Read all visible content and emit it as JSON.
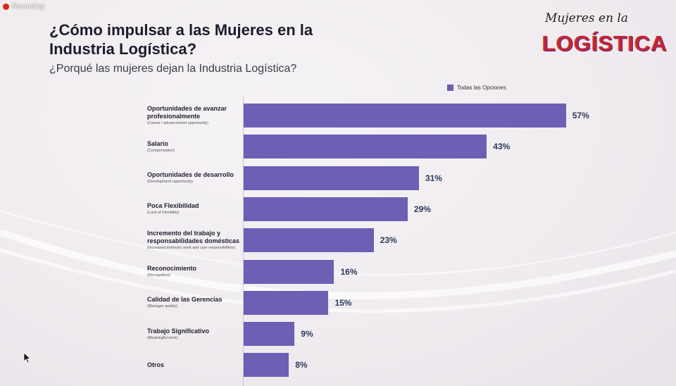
{
  "recording": {
    "label": "Recording"
  },
  "header": {
    "title": "¿Cómo impulsar a las Mujeres en la Industria Logística?",
    "subtitle": "¿Porqué las mujeres dejan la Industria Logística?"
  },
  "logo": {
    "top": "Mujeres en la",
    "main": "LOGÍSTICA"
  },
  "colors": {
    "bar": "#6c5fb4",
    "value_text": "#2e3a5c",
    "background": "#efebef"
  },
  "chart_data": {
    "type": "bar",
    "orientation": "horizontal",
    "title": "",
    "legend": {
      "entries": [
        "Todas las Opciones"
      ],
      "placement": "top-right"
    },
    "categories": [
      {
        "label": "Oportunidades de avanzar profesionalmente",
        "sublabel": "(Career / advancement opportunity)"
      },
      {
        "label": "Salario",
        "sublabel": "(Compensation)"
      },
      {
        "label": "Oportunidades de desarrollo",
        "sublabel": "(Development opportunity)"
      },
      {
        "label": "Poca Flexibilidad",
        "sublabel": "(Lack of Flexibility)"
      },
      {
        "label": "Incremento del trabajo y responsabilidades domésticas",
        "sublabel": "(Increased domestic work and care responsibilities)"
      },
      {
        "label": "Reconocimiento",
        "sublabel": "(Recognition)"
      },
      {
        "label": "Calidad de las Gerencias",
        "sublabel": "(Manager quality)"
      },
      {
        "label": "Trabajo Significativo",
        "sublabel": "(Meaningful work)"
      },
      {
        "label": "Otros",
        "sublabel": ""
      }
    ],
    "series": [
      {
        "name": "Todas las Opciones",
        "values": [
          57,
          43,
          31,
          29,
          23,
          16,
          15,
          9,
          8
        ]
      }
    ],
    "value_labels": [
      "57%",
      "43%",
      "31%",
      "29%",
      "23%",
      "16%",
      "15%",
      "9%",
      "8%"
    ],
    "xlim": [
      0,
      66
    ],
    "grid": false
  }
}
